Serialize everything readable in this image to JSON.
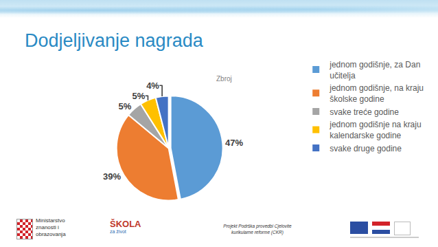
{
  "chart_data": {
    "type": "pie",
    "title": "Dodjeljivanje nagrada",
    "annotations": [
      "Zbroj"
    ],
    "categories": [
      "jednom godišnje, za Dan učitelja",
      "jednom godišnje, na kraju školske godine",
      "svake treće godine",
      "jednom godišnje na kraju kalendarske godine",
      "svake druge godine"
    ],
    "values": [
      47,
      39,
      5,
      5,
      4
    ],
    "value_labels": [
      "47%",
      "39%",
      "5%",
      "5%",
      "4%"
    ],
    "colors": [
      "#5b9bd5",
      "#ed7d31",
      "#a5a5a5",
      "#ffc000",
      "#4472c4"
    ],
    "data_labels": true,
    "legend": "right"
  },
  "footer": {
    "ministry": "Ministarstvo znanosti i obrazovanja",
    "school_logo": "ŠKOLA",
    "school_logo_sub": "za život",
    "project": "Projekt Podrška provedbi Cjelovite kurikularne reforme (CKR)"
  }
}
